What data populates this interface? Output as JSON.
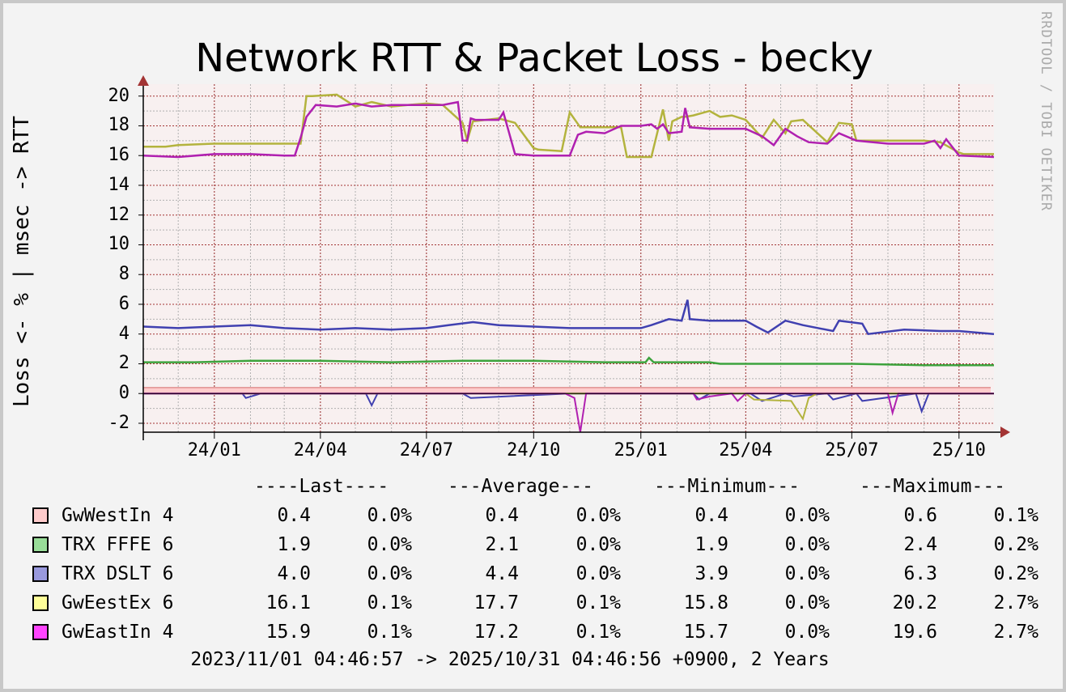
{
  "window": {
    "bg": "#c8c8c8",
    "canvas": "#f3f3f3",
    "plot_bg": "#f8f0f0",
    "grid_major": "#a33434",
    "grid_minor": "#b0b0b0"
  },
  "watermark": "RRDTOOL / TOBI OETIKER",
  "chart_data": {
    "type": "line",
    "title": "Network RTT & Packet Loss - becky",
    "ylabel": "Loss <- % | msec -> RTT",
    "ylim": [
      -2.6,
      20.8
    ],
    "yticks": [
      "20",
      "18",
      "16",
      "14",
      "12",
      "10",
      "8",
      "6",
      "4",
      "2",
      "0",
      "-2"
    ],
    "ytick_values": [
      20,
      18,
      16,
      14,
      12,
      10,
      8,
      6,
      4,
      2,
      0,
      -2
    ],
    "xlim": [
      "2023-11-01",
      "2025-10-31"
    ],
    "xticks": [
      "24/01",
      "24/04",
      "24/07",
      "24/10",
      "25/01",
      "25/04",
      "25/07",
      "25/10"
    ],
    "xtick_dates": [
      "2024-01-01",
      "2024-04-01",
      "2024-07-01",
      "2024-10-01",
      "2025-01-01",
      "2025-04-01",
      "2025-07-01",
      "2025-10-01"
    ],
    "grid": true,
    "series": [
      {
        "name": "GwWestIn 4",
        "color": "#ffcccc",
        "kind": "band",
        "x": [
          "2023-11-01",
          "2025-10-31"
        ],
        "values": [
          0.4,
          0.4
        ],
        "loss_x": [
          "2023-11-01",
          "2025-10-31"
        ],
        "loss": [
          0,
          0
        ]
      },
      {
        "name": "TRX FFFE 6",
        "color": "#3da33d",
        "kind": "line",
        "x": [
          "2023-11-01",
          "2023-12-15",
          "2024-02-01",
          "2024-04-01",
          "2024-06-01",
          "2024-08-01",
          "2024-10-01",
          "2024-12-01",
          "2025-01-05",
          "2025-01-08",
          "2025-01-12",
          "2025-03-01",
          "2025-03-10",
          "2025-05-01",
          "2025-07-01",
          "2025-09-01",
          "2025-10-31"
        ],
        "values": [
          2.1,
          2.1,
          2.2,
          2.2,
          2.1,
          2.2,
          2.2,
          2.1,
          2.1,
          2.4,
          2.1,
          2.1,
          2.0,
          2.0,
          2.0,
          1.9,
          1.9
        ]
      },
      {
        "name": "TRX DSLT 6",
        "color": "#4040b0",
        "kind": "line",
        "x": [
          "2023-11-01",
          "2023-12-01",
          "2024-01-01",
          "2024-02-01",
          "2024-03-01",
          "2024-04-01",
          "2024-05-01",
          "2024-06-01",
          "2024-07-01",
          "2024-07-20",
          "2024-08-10",
          "2024-09-01",
          "2024-10-01",
          "2024-11-01",
          "2024-12-01",
          "2025-01-01",
          "2025-01-10",
          "2025-01-25",
          "2025-02-05",
          "2025-02-10",
          "2025-02-12",
          "2025-03-01",
          "2025-04-01",
          "2025-04-10",
          "2025-04-20",
          "2025-05-05",
          "2025-05-20",
          "2025-06-15",
          "2025-06-20",
          "2025-07-10",
          "2025-07-15",
          "2025-08-15",
          "2025-09-15",
          "2025-10-01",
          "2025-10-31"
        ],
        "values": [
          4.5,
          4.4,
          4.5,
          4.6,
          4.4,
          4.3,
          4.4,
          4.3,
          4.4,
          4.6,
          4.8,
          4.6,
          4.5,
          4.4,
          4.4,
          4.4,
          4.6,
          5.0,
          4.9,
          6.3,
          5.0,
          4.9,
          4.9,
          4.5,
          4.1,
          4.9,
          4.6,
          4.2,
          4.9,
          4.7,
          4.0,
          4.3,
          4.2,
          4.2,
          4.0
        ],
        "loss_x": [
          "2023-11-01",
          "2024-01-25",
          "2024-01-28",
          "2024-02-10",
          "2024-04-01",
          "2024-05-10",
          "2024-05-15",
          "2024-05-20",
          "2024-08-01",
          "2024-08-08",
          "2024-11-01",
          "2025-02-15",
          "2025-02-20",
          "2025-03-01",
          "2025-04-05",
          "2025-04-15",
          "2025-05-05",
          "2025-05-12",
          "2025-06-10",
          "2025-06-15",
          "2025-07-05",
          "2025-07-10",
          "2025-08-25",
          "2025-08-30",
          "2025-09-05",
          "2025-10-31"
        ],
        "loss": [
          0,
          0,
          -0.3,
          0,
          0,
          0,
          -0.8,
          0,
          0,
          -0.3,
          0,
          0,
          -0.4,
          0,
          0,
          -0.5,
          0,
          -0.2,
          0,
          -0.4,
          0,
          -0.5,
          0,
          -1.2,
          0,
          0
        ]
      },
      {
        "name": "GwEestEx 6",
        "color": "#b3b33d",
        "kind": "line",
        "x": [
          "2023-11-01",
          "2023-11-20",
          "2023-12-01",
          "2024-01-01",
          "2024-02-01",
          "2024-03-01",
          "2024-03-15",
          "2024-03-20",
          "2024-03-25",
          "2024-04-15",
          "2024-05-01",
          "2024-05-15",
          "2024-06-01",
          "2024-06-15",
          "2024-07-01",
          "2024-07-15",
          "2024-08-01",
          "2024-08-05",
          "2024-08-10",
          "2024-09-01",
          "2024-09-15",
          "2024-10-01",
          "2024-10-05",
          "2024-10-25",
          "2024-11-01",
          "2024-11-10",
          "2024-11-20",
          "2024-12-15",
          "2024-12-20",
          "2025-01-10",
          "2025-01-20",
          "2025-01-25",
          "2025-01-28",
          "2025-02-05",
          "2025-02-08",
          "2025-02-15",
          "2025-03-01",
          "2025-03-10",
          "2025-03-20",
          "2025-04-01",
          "2025-04-15",
          "2025-04-25",
          "2025-05-05",
          "2025-05-10",
          "2025-05-20",
          "2025-06-10",
          "2025-06-20",
          "2025-07-01",
          "2025-07-05",
          "2025-08-01",
          "2025-08-10",
          "2025-09-01",
          "2025-09-15",
          "2025-10-01",
          "2025-10-05",
          "2025-10-31"
        ],
        "values": [
          16.6,
          16.6,
          16.7,
          16.8,
          16.8,
          16.8,
          16.8,
          20.0,
          20.0,
          20.1,
          19.3,
          19.6,
          19.3,
          19.4,
          19.5,
          19.4,
          18.2,
          17.0,
          18.3,
          18.5,
          18.2,
          16.5,
          16.4,
          16.3,
          18.9,
          17.9,
          17.9,
          17.9,
          15.9,
          15.9,
          19.1,
          17.0,
          18.3,
          18.6,
          18.6,
          18.7,
          19.0,
          18.6,
          18.7,
          18.4,
          17.2,
          18.4,
          17.5,
          18.3,
          18.4,
          16.9,
          18.2,
          18.1,
          17.0,
          17.0,
          17.0,
          17.0,
          16.9,
          16.2,
          16.1,
          16.1
        ],
        "loss_x": [
          "2023-11-01",
          "2025-04-01",
          "2025-04-08",
          "2025-05-10",
          "2025-05-20",
          "2025-05-25",
          "2025-06-01",
          "2025-10-31"
        ],
        "loss": [
          0,
          0,
          -0.4,
          -0.5,
          -1.7,
          -0.3,
          0,
          0
        ]
      },
      {
        "name": "GwEastIn 4",
        "color": "#b020b0",
        "kind": "line",
        "x": [
          "2023-11-01",
          "2023-12-01",
          "2024-01-01",
          "2024-02-01",
          "2024-03-01",
          "2024-03-10",
          "2024-03-15",
          "2024-03-20",
          "2024-03-28",
          "2024-04-15",
          "2024-05-01",
          "2024-05-15",
          "2024-06-01",
          "2024-07-01",
          "2024-07-15",
          "2024-07-28",
          "2024-08-01",
          "2024-08-05",
          "2024-08-08",
          "2024-08-12",
          "2024-09-01",
          "2024-09-05",
          "2024-09-10",
          "2024-09-15",
          "2024-10-01",
          "2024-10-15",
          "2024-11-01",
          "2024-11-08",
          "2024-11-15",
          "2024-12-01",
          "2024-12-15",
          "2025-01-01",
          "2025-01-10",
          "2025-01-15",
          "2025-01-20",
          "2025-01-25",
          "2025-02-05",
          "2025-02-08",
          "2025-02-12",
          "2025-03-01",
          "2025-03-15",
          "2025-04-01",
          "2025-04-15",
          "2025-04-25",
          "2025-05-05",
          "2025-05-15",
          "2025-05-25",
          "2025-06-10",
          "2025-06-20",
          "2025-07-05",
          "2025-08-01",
          "2025-09-01",
          "2025-09-10",
          "2025-09-15",
          "2025-09-20",
          "2025-10-01",
          "2025-10-31"
        ],
        "values": [
          16.0,
          15.9,
          16.1,
          16.1,
          16.0,
          16.0,
          17.2,
          18.6,
          19.4,
          19.3,
          19.5,
          19.3,
          19.4,
          19.4,
          19.4,
          19.6,
          17.0,
          17.0,
          18.5,
          18.4,
          18.4,
          18.9,
          17.5,
          16.1,
          16.0,
          16.0,
          16.0,
          17.4,
          17.6,
          17.5,
          18.0,
          18.0,
          18.1,
          17.8,
          18.1,
          17.5,
          17.6,
          19.2,
          17.9,
          17.8,
          17.8,
          17.8,
          17.3,
          16.7,
          17.8,
          17.3,
          16.9,
          16.8,
          17.5,
          17.0,
          16.8,
          16.8,
          17.0,
          16.5,
          17.1,
          16.0,
          15.9
        ],
        "loss_x": [
          "2023-11-01",
          "2024-10-28",
          "2024-11-05",
          "2024-11-10",
          "2024-11-15",
          "2025-01-20",
          "2025-02-15",
          "2025-02-18",
          "2025-03-01",
          "2025-03-20",
          "2025-03-25",
          "2025-04-01",
          "2025-08-01",
          "2025-08-05",
          "2025-08-10",
          "2025-10-31"
        ],
        "loss": [
          0,
          0,
          -0.3,
          -2.6,
          0,
          0,
          0,
          -0.4,
          -0.2,
          0,
          -0.5,
          0,
          0,
          -1.3,
          0,
          0
        ]
      }
    ]
  },
  "legend": {
    "headers": [
      "----Last----",
      "---Average---",
      "---Minimum---",
      "---Maximum---"
    ],
    "rows": [
      {
        "name": "GwWestIn 4",
        "color": "#ffcccc",
        "cells": [
          "0.4",
          "0.0%",
          "0.4",
          "0.0%",
          "0.4",
          "0.0%",
          "0.6",
          "0.1%"
        ]
      },
      {
        "name": "TRX FFFE 6",
        "color": "#99dd99",
        "cells": [
          "1.9",
          "0.0%",
          "2.1",
          "0.0%",
          "1.9",
          "0.0%",
          "2.4",
          "0.2%"
        ]
      },
      {
        "name": "TRX DSLT 6",
        "color": "#9999dd",
        "cells": [
          "4.0",
          "0.0%",
          "4.4",
          "0.0%",
          "3.9",
          "0.0%",
          "6.3",
          "0.2%"
        ]
      },
      {
        "name": "GwEestEx 6",
        "color": "#ffff99",
        "cells": [
          "16.1",
          "0.1%",
          "17.7",
          "0.1%",
          "15.8",
          "0.0%",
          "20.2",
          "2.7%"
        ]
      },
      {
        "name": "GwEastIn 4",
        "color": "#ff44ff",
        "cells": [
          "15.9",
          "0.1%",
          "17.2",
          "0.1%",
          "15.7",
          "0.0%",
          "19.6",
          "2.7%"
        ]
      }
    ]
  },
  "footer": "2023/11/01 04:46:57 -> 2025/10/31 04:46:56 +0900, 2 Years"
}
